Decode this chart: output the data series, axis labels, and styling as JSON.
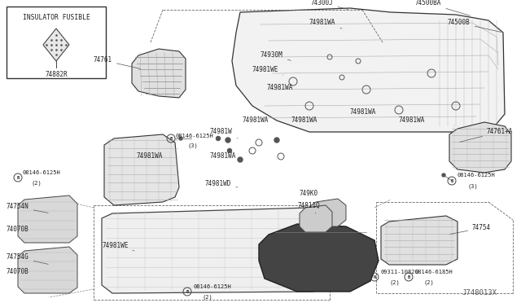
{
  "bg_color": "#ffffff",
  "diagram_id": "J748013X",
  "inset_label": "INSULATOR FUSIBLE",
  "inset_part": "74882R",
  "text_color": "#222222",
  "line_color": "#333333",
  "figsize": [
    6.4,
    3.72
  ],
  "dpi": 100
}
